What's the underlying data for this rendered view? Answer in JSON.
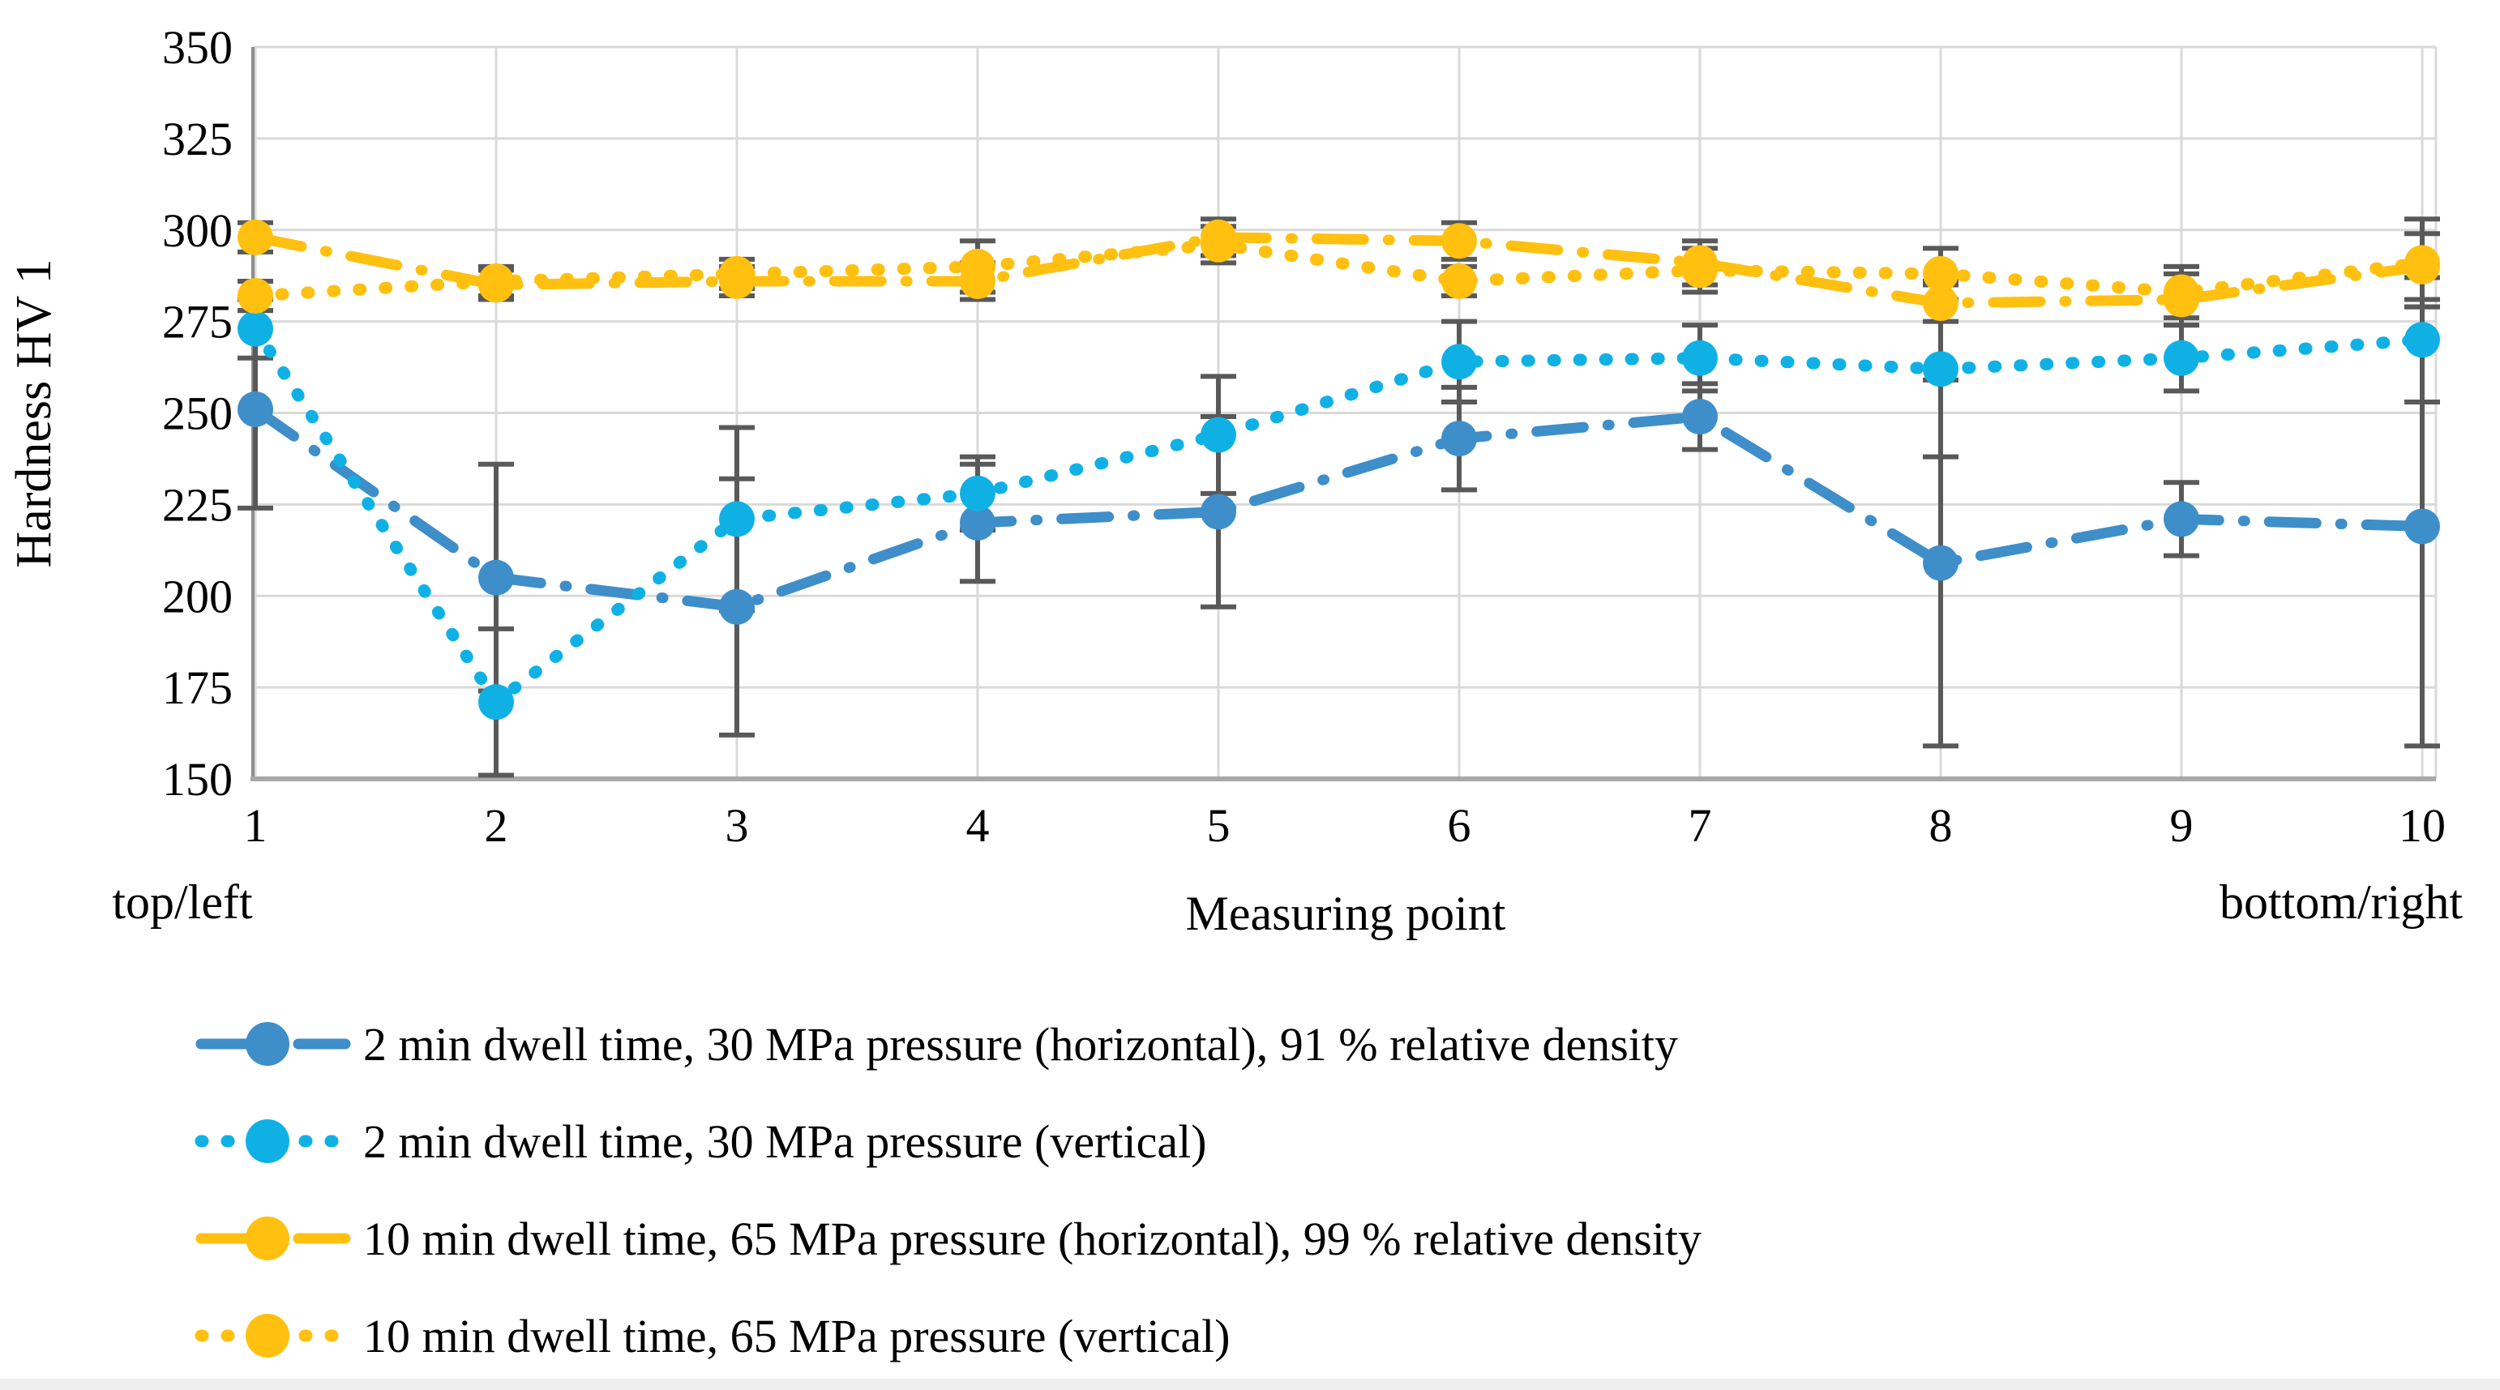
{
  "chart_data": {
    "type": "line",
    "title": "",
    "xlabel": "Measuring point",
    "ylabel": "Hardness HV 1",
    "x": [
      1,
      2,
      3,
      4,
      5,
      6,
      7,
      8,
      9,
      10
    ],
    "x_annotations": {
      "first": "top/left",
      "last": "bottom/right"
    },
    "ylim": [
      150,
      350
    ],
    "y_ticks": [
      350,
      325,
      300,
      275,
      250,
      225,
      200,
      175,
      150
    ],
    "grid": true,
    "legend_position": "bottom-left",
    "colors": {
      "blue": "#3E8EC9",
      "cyan": "#0FB1E5",
      "orange": "#FFC010",
      "error_bar": "#595959",
      "gridline": "#D9D9D9",
      "axis_line": "#9C9C9C"
    },
    "series": [
      {
        "name": "2 min dwell time, 30 MPa pressure (horizontal), 91 % relative density",
        "color": "#3E8EC9",
        "line_style": "dashdot",
        "marker": "circle",
        "values": [
          251,
          205,
          197,
          220,
          223,
          243,
          249,
          209,
          221,
          219
        ],
        "errors": [
          27,
          31,
          35,
          16,
          26,
          14,
          9,
          50,
          10,
          60
        ]
      },
      {
        "name": "2 min dwell time, 30 MPa pressure (vertical)",
        "color": "#0FB1E5",
        "line_style": "dotted",
        "marker": "circle",
        "values": [
          273,
          171,
          221,
          228,
          244,
          264,
          265,
          262,
          265,
          270
        ],
        "errors": [
          8,
          20,
          25,
          10,
          16,
          11,
          9,
          24,
          9,
          17
        ]
      },
      {
        "name": "10 min dwell time, 65 MPa pressure (horizontal), 99 % relative density",
        "color": "#FFC010",
        "line_style": "dashdot",
        "marker": "circle",
        "values": [
          298,
          285,
          286,
          286,
          298,
          297,
          291,
          280,
          281,
          290
        ],
        "errors": [
          4,
          4,
          4,
          5,
          5,
          5,
          6,
          5,
          7,
          9
        ]
      },
      {
        "name": "10 min dwell time, 65 MPa pressure (vertical)",
        "color": "#FFC010",
        "line_style": "dotted",
        "marker": "circle",
        "values": [
          282,
          286,
          288,
          290,
          296,
          286,
          289,
          288,
          283,
          291
        ],
        "errors": [
          4,
          4,
          4,
          7,
          5,
          4,
          6,
          7,
          7,
          12
        ]
      }
    ]
  }
}
